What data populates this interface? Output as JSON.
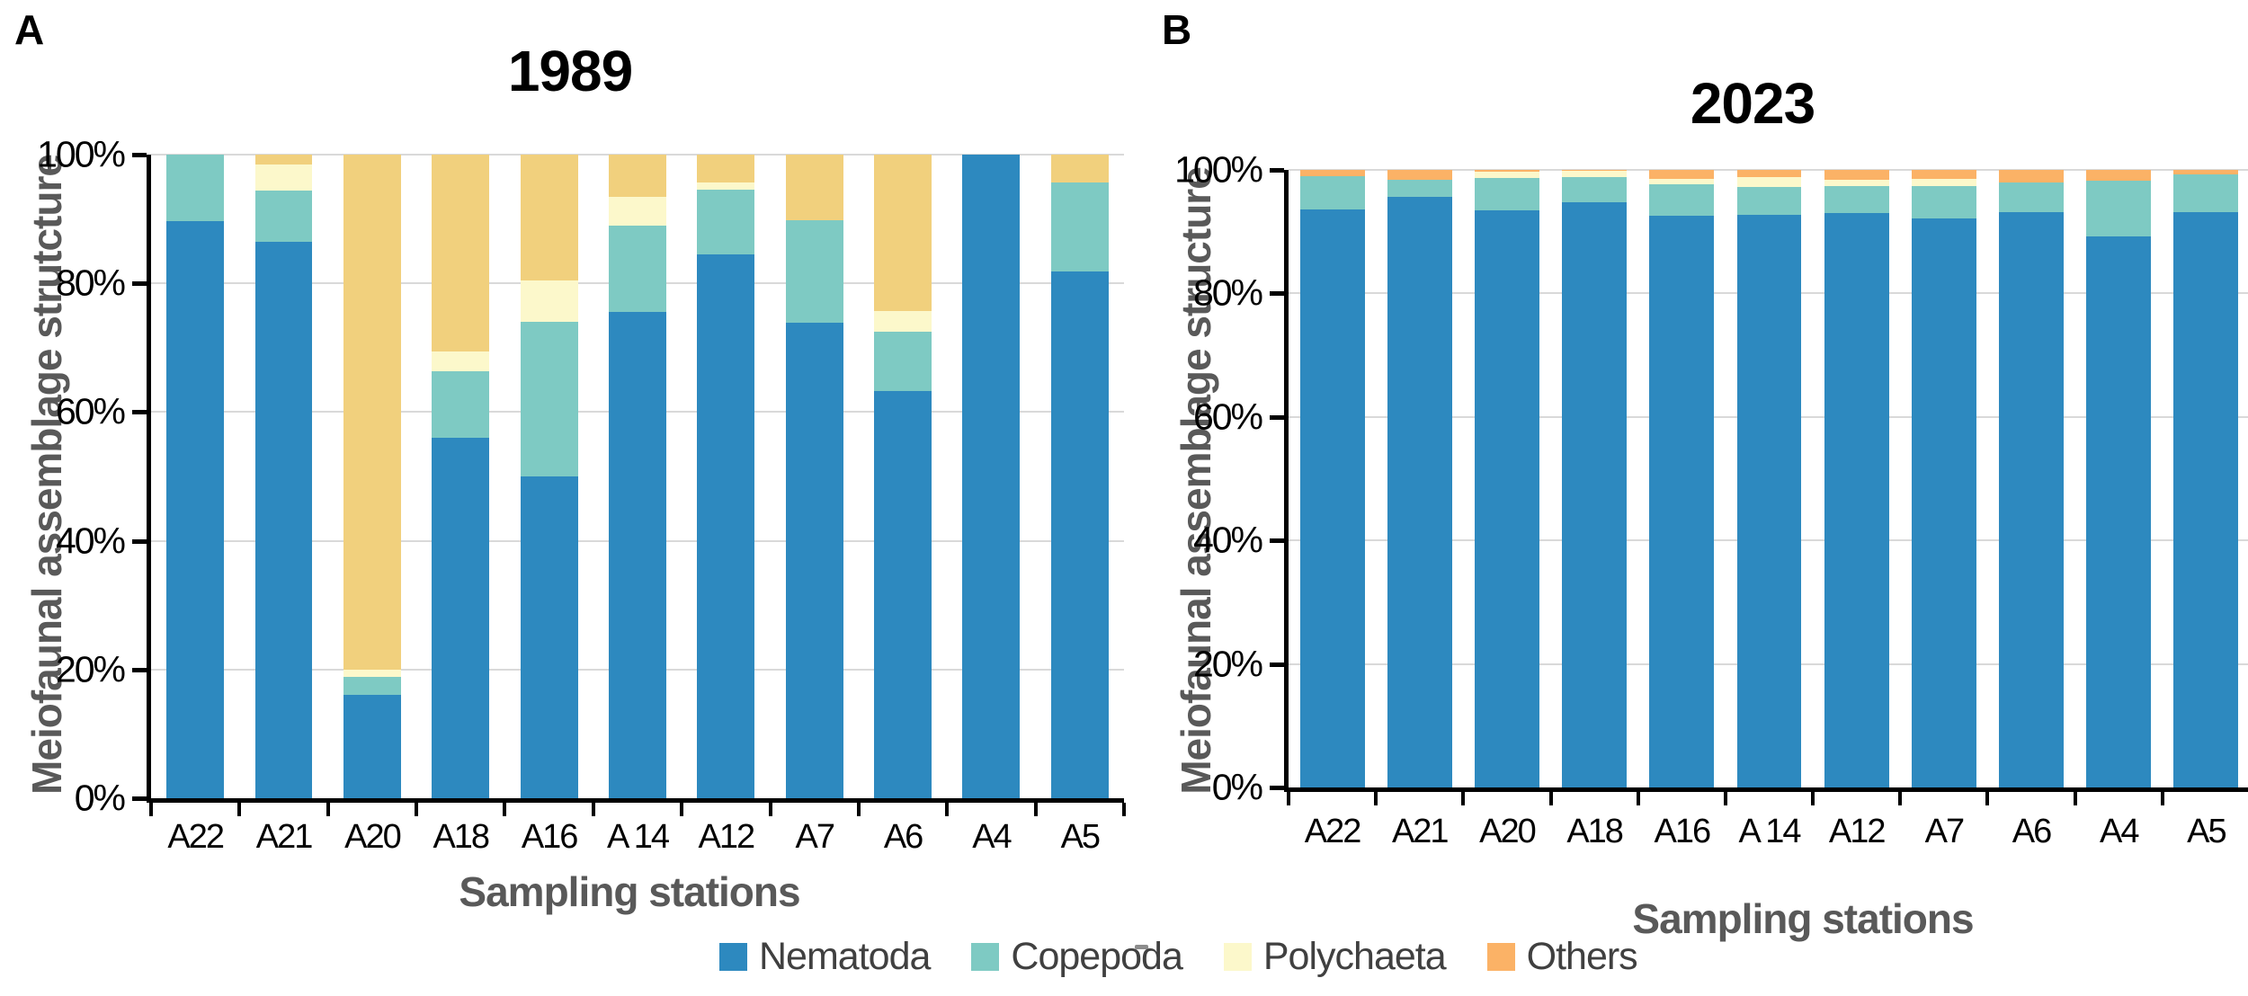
{
  "figure": {
    "panel_a_letter": "A",
    "panel_b_letter": "B"
  },
  "legend": {
    "items": [
      {
        "label": "Nematoda",
        "color": "#2d89bf"
      },
      {
        "label": "Copepoda",
        "color": "#7ecac3"
      },
      {
        "label": "Polychaeta",
        "color": "#fcf8cb"
      },
      {
        "label": "Others",
        "color": "#fbb266"
      }
    ]
  },
  "chart_data": [
    {
      "type": "bar",
      "stacked": true,
      "panel": "A",
      "title": "1989",
      "xlabel": "Sampling stations",
      "ylabel": "Meiofaunal assemblage strutcture",
      "categories": [
        "A22",
        "A21",
        "A20",
        "A18",
        "A16",
        "A 14",
        "A12",
        "A7",
        "A6",
        "A4",
        "A5"
      ],
      "series": [
        {
          "name": "Nematoda",
          "color": "#2d89bf",
          "values": [
            89.6,
            86.5,
            16.1,
            56.0,
            50.0,
            75.6,
            84.5,
            73.9,
            63.3,
            100.0,
            81.8
          ]
        },
        {
          "name": "Copepoda",
          "color": "#7ecac3",
          "values": [
            10.4,
            7.9,
            2.8,
            10.3,
            24.0,
            13.4,
            10.0,
            15.9,
            9.2,
            0.0,
            13.9
          ]
        },
        {
          "name": "Polychaeta",
          "color": "#fcf8cb",
          "values": [
            0.0,
            4.0,
            1.1,
            3.1,
            6.5,
            4.4,
            1.2,
            0.0,
            3.2,
            0.0,
            0.0
          ]
        },
        {
          "name": "Others",
          "color": "#f1d07d",
          "values": [
            0.0,
            1.6,
            80.0,
            30.6,
            19.5,
            6.6,
            4.3,
            10.2,
            24.3,
            0.0,
            4.3
          ]
        }
      ],
      "ylim": [
        0,
        100
      ],
      "yticks": [
        "0%",
        "20%",
        "40%",
        "60%",
        "80%",
        "100%"
      ],
      "grid": true,
      "legend_position": "bottom-shared"
    },
    {
      "type": "bar",
      "stacked": true,
      "panel": "B",
      "title": "2023",
      "xlabel": "Sampling stations",
      "ylabel": "Meiofaunal assemblage structure",
      "categories": [
        "A22",
        "A21",
        "A20",
        "A18",
        "A16",
        "A 14",
        "A12",
        "A7",
        "A6",
        "A4",
        "A5"
      ],
      "series": [
        {
          "name": "Nematoda",
          "color": "#2d89bf",
          "values": [
            93.6,
            95.7,
            93.5,
            94.8,
            92.6,
            92.7,
            93.0,
            92.1,
            93.1,
            89.3,
            93.2
          ]
        },
        {
          "name": "Copepoda",
          "color": "#7ecac3",
          "values": [
            5.4,
            2.7,
            5.2,
            4.1,
            5.1,
            4.5,
            4.4,
            5.3,
            4.9,
            9.0,
            6.1
          ]
        },
        {
          "name": "Polychaeta",
          "color": "#fcf8cb",
          "values": [
            0.0,
            0.0,
            1.0,
            0.9,
            0.8,
            1.6,
            1.0,
            1.1,
            0.0,
            0.0,
            0.0
          ]
        },
        {
          "name": "Others",
          "color": "#fbb266",
          "values": [
            1.0,
            1.6,
            0.3,
            0.2,
            1.5,
            1.2,
            1.6,
            1.5,
            2.0,
            1.7,
            0.7
          ]
        }
      ],
      "ylim": [
        0,
        100
      ],
      "yticks": [
        "0%",
        "20%",
        "40%",
        "60%",
        "80%",
        "100%"
      ],
      "grid": true,
      "legend_position": "bottom-shared"
    }
  ]
}
